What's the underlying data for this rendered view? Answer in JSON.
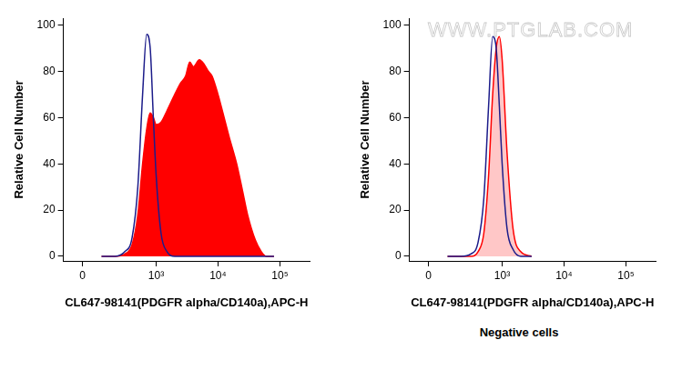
{
  "chart_data": [
    {
      "type": "histogram",
      "x_label": "CL647-98141(PDGFR alpha/CD140a),APC-H",
      "y_label": "Relative Cell Number",
      "log": "x",
      "grid": false,
      "xlim": [
        -100,
        300000
      ],
      "xticks": [
        0,
        {
          "value": 1000,
          "label": "10³"
        },
        {
          "value": 10000,
          "label": "10⁴"
        },
        {
          "value": 100000,
          "label": "10⁵"
        }
      ],
      "ylim": [
        -2,
        103
      ],
      "yticks": [
        0,
        20,
        40,
        60,
        80,
        100
      ],
      "x": [
        100,
        200,
        300,
        400,
        500,
        600,
        700,
        800,
        900,
        1000,
        1200,
        1500,
        2000,
        2500,
        3000,
        3500,
        4000,
        5000,
        6000,
        7000,
        8000,
        10000,
        12000,
        15000,
        20000,
        25000,
        30000,
        40000,
        50000,
        60000,
        80000
      ],
      "series": [
        {
          "type": "line",
          "color": "#1c1c8a",
          "values": [
            0,
            0,
            2,
            8,
            30,
            70,
            96,
            90,
            60,
            35,
            10,
            2,
            0,
            0,
            0,
            0,
            0,
            0,
            0,
            0,
            0,
            0,
            0,
            0,
            0,
            0,
            0,
            0,
            0,
            0,
            0
          ]
        },
        {
          "type": "area",
          "color": "#ff0000",
          "values": [
            0,
            0,
            1,
            5,
            18,
            40,
            55,
            62,
            60,
            57,
            58,
            63,
            70,
            75,
            78,
            84,
            82,
            85,
            83,
            80,
            78,
            70,
            62,
            52,
            40,
            28,
            18,
            7,
            2,
            0,
            0
          ]
        }
      ]
    },
    {
      "type": "histogram",
      "x_label": "CL647-98141(PDGFR alpha/CD140a),APC-H",
      "y_label": "Relative Cell Number",
      "subtitle": "Negative cells",
      "watermark": "WWW.PTGLAB.COM",
      "log": "x",
      "grid": false,
      "xlim": [
        -100,
        300000
      ],
      "xticks": [
        0,
        {
          "value": 1000,
          "label": "10³"
        },
        {
          "value": 10000,
          "label": "10⁴"
        },
        {
          "value": 100000,
          "label": "10⁵"
        }
      ],
      "ylim": [
        -2,
        103
      ],
      "yticks": [
        0,
        20,
        40,
        60,
        80,
        100
      ],
      "x": [
        100,
        200,
        300,
        400,
        500,
        600,
        700,
        800,
        900,
        1000,
        1200,
        1500,
        2000,
        3000
      ],
      "series": [
        {
          "type": "line",
          "color": "#1c1c8a",
          "values": [
            0,
            0,
            1,
            6,
            25,
            65,
            95,
            90,
            65,
            40,
            12,
            3,
            0,
            0
          ]
        },
        {
          "type": "shaded",
          "color": "#ff0000",
          "values": [
            0,
            0,
            0,
            2,
            10,
            35,
            70,
            90,
            95,
            85,
            45,
            12,
            2,
            0
          ]
        }
      ]
    }
  ]
}
